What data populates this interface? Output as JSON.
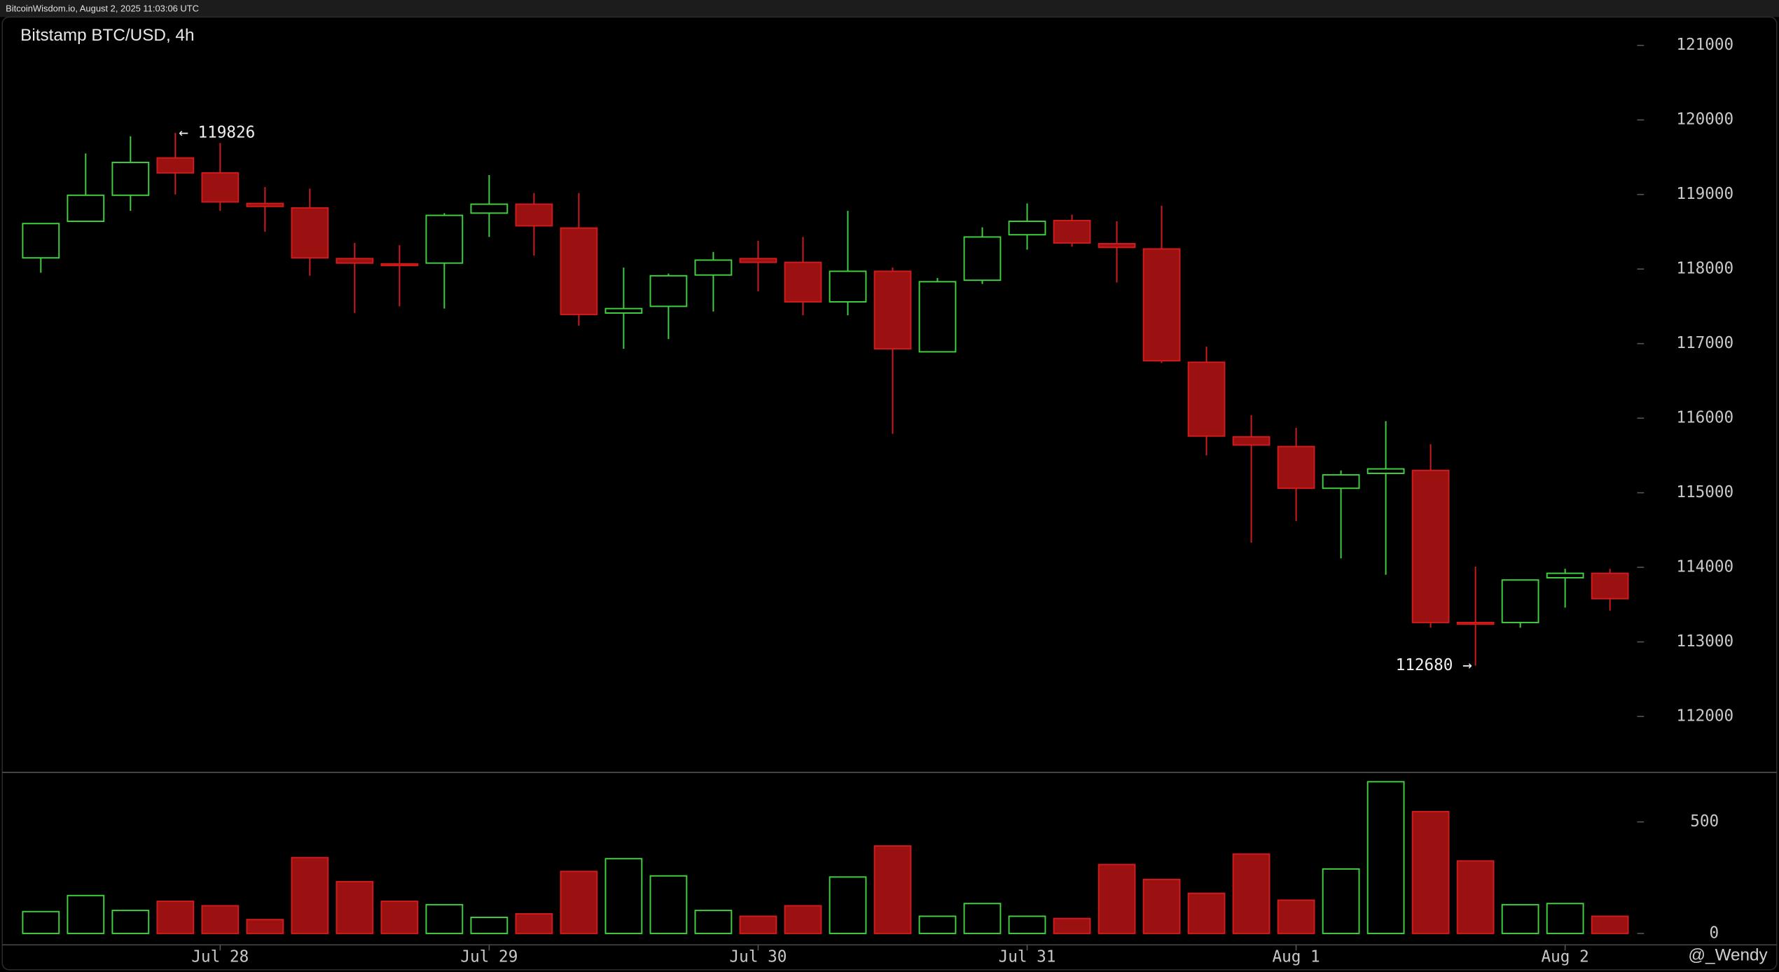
{
  "chart_data": {
    "type": "candlestick",
    "header": "BitcoinWisdom.io, August 2, 2025 11:03:06 UTC",
    "title": "Bitstamp BTC/USD, 4h",
    "watermark": "@_Wendy",
    "categories": [
      null,
      null,
      null,
      null,
      "Jul 28",
      null,
      null,
      null,
      null,
      null,
      "Jul 29",
      null,
      null,
      null,
      null,
      null,
      "Jul 30",
      null,
      null,
      null,
      null,
      null,
      "Jul 31",
      null,
      null,
      null,
      null,
      null,
      "Aug 1",
      null,
      null,
      null,
      null,
      null,
      "Aug 2",
      null
    ],
    "open": [
      118150,
      118640,
      118990,
      119490,
      119290,
      118880,
      118820,
      118140,
      118070,
      118080,
      118750,
      118870,
      118550,
      117410,
      117500,
      117920,
      118140,
      118090,
      117560,
      117970,
      116890,
      117850,
      118460,
      118650,
      118340,
      118270,
      116750,
      115750,
      115620,
      115060,
      115260,
      115300,
      113260,
      113260,
      113860,
      113920
    ],
    "high": [
      118610,
      119550,
      119780,
      119826,
      119690,
      119100,
      119080,
      118350,
      118320,
      118750,
      119260,
      119020,
      119020,
      118020,
      117940,
      118230,
      118380,
      118430,
      118780,
      118020,
      117880,
      118560,
      118880,
      118730,
      118640,
      118850,
      116960,
      116040,
      115870,
      115300,
      115960,
      115650,
      114010,
      113830,
      113980,
      113980
    ],
    "low": [
      117950,
      118640,
      118780,
      119000,
      118780,
      118500,
      117910,
      117410,
      117500,
      117470,
      118430,
      118180,
      117240,
      116930,
      117060,
      117430,
      117700,
      117380,
      117380,
      115790,
      116890,
      117800,
      118260,
      118300,
      117820,
      116740,
      115500,
      114330,
      114620,
      114120,
      113900,
      113190,
      112680,
      113190,
      113460,
      113420
    ],
    "close": [
      118610,
      118990,
      119430,
      119290,
      118900,
      118840,
      118150,
      118080,
      118050,
      118720,
      118870,
      118580,
      117390,
      117470,
      117910,
      118120,
      118090,
      117560,
      117970,
      116930,
      117830,
      118430,
      118640,
      118350,
      118290,
      116770,
      115760,
      115640,
      115060,
      115240,
      115320,
      113260,
      113250,
      113830,
      113920,
      113580
    ],
    "volume": [
      98,
      170,
      103,
      144,
      124,
      62,
      340,
      232,
      144,
      129,
      72,
      88,
      278,
      335,
      258,
      103,
      77,
      124,
      253,
      392,
      77,
      134,
      77,
      67,
      309,
      242,
      180,
      356,
      149,
      289,
      680,
      546,
      325,
      129,
      134,
      77
    ],
    "up_color": "#3fd13f",
    "down_color": "#d01c1c",
    "down_fill": "#9b1010",
    "ylim": [
      111250,
      121380
    ],
    "yticks": [
      112000,
      113000,
      114000,
      115000,
      116000,
      117000,
      118000,
      119000,
      120000,
      121000
    ],
    "volume_ylim": [
      0,
      722
    ],
    "volume_yticks": [
      0,
      500
    ],
    "annotations": [
      {
        "value": 119826,
        "label": "← 119826"
      },
      {
        "value": 112680,
        "label": "112680 →"
      }
    ]
  }
}
